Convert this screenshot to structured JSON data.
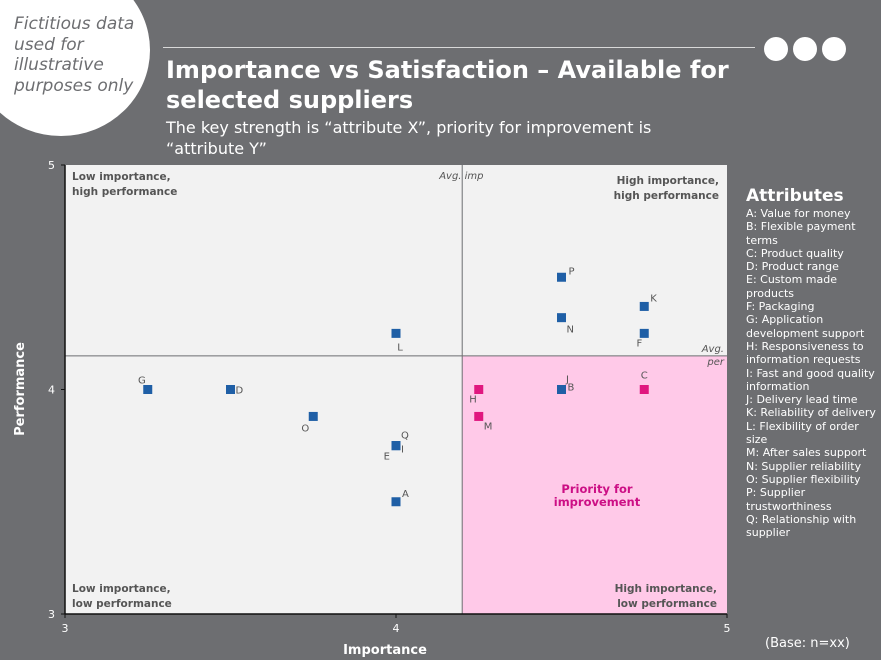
{
  "disclaimer": "Fictitious data used for illustrative purposes only",
  "title": "Importance vs Satisfaction – Available for selected suppliers",
  "subtitle": "The key strength is “attribute X”, priority for improvement is “attribute Y”",
  "base_note": "(Base: n=xx)",
  "legend": {
    "title": "Attributes",
    "items": [
      "A: Value for money",
      "B: Flexible payment terms",
      "C: Product quality",
      "D: Product range",
      "E: Custom made products",
      "F: Packaging",
      "G: Application development support",
      "H: Responsiveness to information requests",
      "I: Fast and good quality information",
      "J: Delivery lead time",
      "K: Reliability of delivery",
      "L: Flexibility of order size",
      "M: After sales support",
      "N: Supplier reliability",
      "O: Supplier flexibility",
      "P: Supplier trustworthiness",
      "Q: Relationship with supplier"
    ]
  },
  "colors": {
    "background": "#6d6e71",
    "plot_background": "#f2f2f2",
    "priority_region": "#ffc9e8",
    "blue_marker": "#1f5fa6",
    "pink_marker": "#e0177f",
    "priority_text": "#cc0f85"
  },
  "chart_data": {
    "type": "scatter",
    "xlabel": "Importance",
    "ylabel": "Performance",
    "xlim": [
      3,
      5
    ],
    "ylim": [
      3,
      5
    ],
    "x_ticks": [
      "3",
      "4",
      "5"
    ],
    "y_ticks": [
      "3",
      "4",
      "5"
    ],
    "avg_importance": 4.2,
    "avg_performance": 4.15,
    "avg_importance_label": "Avg. imp",
    "avg_performance_label": "Avg. per",
    "quadrant_labels": {
      "top_left": "Low importance, high performance",
      "top_right": "High importance, high performance",
      "bottom_left": "Low importance, low performance",
      "bottom_right": "High importance, low performance"
    },
    "priority_label": "Priority for improvement",
    "points": [
      {
        "label": "A",
        "x": 4.0,
        "y": 3.5,
        "color": "blue"
      },
      {
        "label": "B",
        "x": 4.5,
        "y": 4.0,
        "color": "pink"
      },
      {
        "label": "C",
        "x": 4.75,
        "y": 4.0,
        "color": "pink"
      },
      {
        "label": "D",
        "x": 3.5,
        "y": 4.0,
        "color": "blue"
      },
      {
        "label": "E",
        "x": 4.0,
        "y": 3.75,
        "color": "blue"
      },
      {
        "label": "F",
        "x": 4.75,
        "y": 4.25,
        "color": "blue"
      },
      {
        "label": "G",
        "x": 3.25,
        "y": 4.0,
        "color": "blue"
      },
      {
        "label": "H",
        "x": 4.25,
        "y": 4.0,
        "color": "pink"
      },
      {
        "label": "I",
        "x": 4.0,
        "y": 3.75,
        "color": "blue"
      },
      {
        "label": "J",
        "x": 4.5,
        "y": 4.0,
        "color": "blue"
      },
      {
        "label": "K",
        "x": 4.75,
        "y": 4.37,
        "color": "blue"
      },
      {
        "label": "L",
        "x": 4.0,
        "y": 4.25,
        "color": "blue"
      },
      {
        "label": "M",
        "x": 4.25,
        "y": 3.88,
        "color": "pink"
      },
      {
        "label": "N",
        "x": 4.5,
        "y": 4.32,
        "color": "blue"
      },
      {
        "label": "O",
        "x": 3.75,
        "y": 3.88,
        "color": "blue"
      },
      {
        "label": "P",
        "x": 4.5,
        "y": 4.5,
        "color": "blue"
      },
      {
        "label": "Q",
        "x": 4.0,
        "y": 3.75,
        "color": "blue"
      }
    ]
  }
}
